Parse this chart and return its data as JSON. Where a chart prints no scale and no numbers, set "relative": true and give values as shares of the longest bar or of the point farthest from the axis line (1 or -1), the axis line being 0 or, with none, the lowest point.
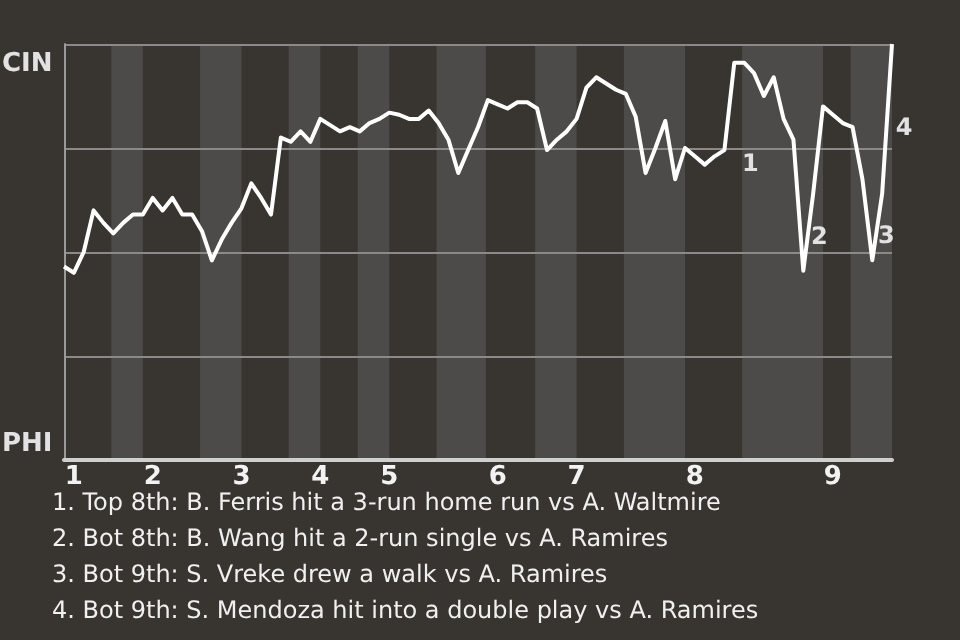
{
  "chart_data": {
    "type": "line",
    "relative": true,
    "categories": [
      null,
      "1",
      null,
      null,
      null,
      null,
      null,
      null,
      null,
      "2",
      null,
      null,
      null,
      null,
      null,
      null,
      null,
      null,
      "3",
      null,
      null,
      null,
      null,
      null,
      null,
      null,
      "4",
      null,
      null,
      null,
      null,
      null,
      null,
      "5",
      null,
      null,
      null,
      null,
      null,
      null,
      null,
      null,
      null,
      null,
      "6",
      null,
      null,
      null,
      null,
      null,
      null,
      null,
      "7",
      null,
      null,
      null,
      null,
      null,
      null,
      null,
      null,
      null,
      null,
      null,
      "8",
      null,
      null,
      null,
      null,
      null,
      null,
      null,
      null,
      null,
      null,
      null,
      null,
      null,
      "9",
      null,
      null,
      null,
      null,
      null,
      null
    ],
    "series": [
      {
        "color": "#ffffff",
        "values": [
          0.465,
          0.45,
          0.5,
          0.6,
          0.57,
          0.545,
          0.57,
          0.59,
          0.59,
          0.63,
          0.6,
          0.63,
          0.59,
          0.59,
          0.55,
          0.48,
          0.53,
          0.57,
          0.605,
          0.665,
          0.63,
          0.59,
          0.775,
          0.765,
          0.79,
          0.765,
          0.82,
          0.805,
          0.79,
          0.8,
          0.79,
          0.81,
          0.82,
          0.835,
          0.83,
          0.82,
          0.82,
          0.84,
          0.81,
          0.77,
          0.69,
          0.745,
          0.8,
          0.865,
          0.855,
          0.845,
          0.86,
          0.86,
          0.845,
          0.745,
          0.77,
          0.79,
          0.82,
          0.895,
          0.92,
          0.905,
          0.89,
          0.88,
          0.825,
          0.69,
          0.75,
          0.815,
          0.675,
          0.75,
          0.73,
          0.71,
          0.73,
          0.745,
          0.955,
          0.955,
          0.93,
          0.875,
          0.92,
          0.82,
          0.77,
          0.455,
          0.64,
          0.85,
          0.83,
          0.81,
          0.8,
          0.675,
          0.48,
          0.64,
          1
        ]
      }
    ],
    "grid": "y",
    "marker": "none",
    "line_style": "solid",
    "annotations": [
      "CIN",
      "PHI",
      "1",
      "2",
      "3",
      "4",
      "1. Top 8th: B. Ferris hit a 3-run home run vs A. Waltmire",
      "2. Bot 8th: B. Wang hit a 2-run single vs A. Ramires",
      "3. Bot 9th: S. Vreke drew a walk vs A. Ramires",
      "4. Bot 9th: S. Mendoza hit into a double play vs A. Ramires"
    ]
  }
}
